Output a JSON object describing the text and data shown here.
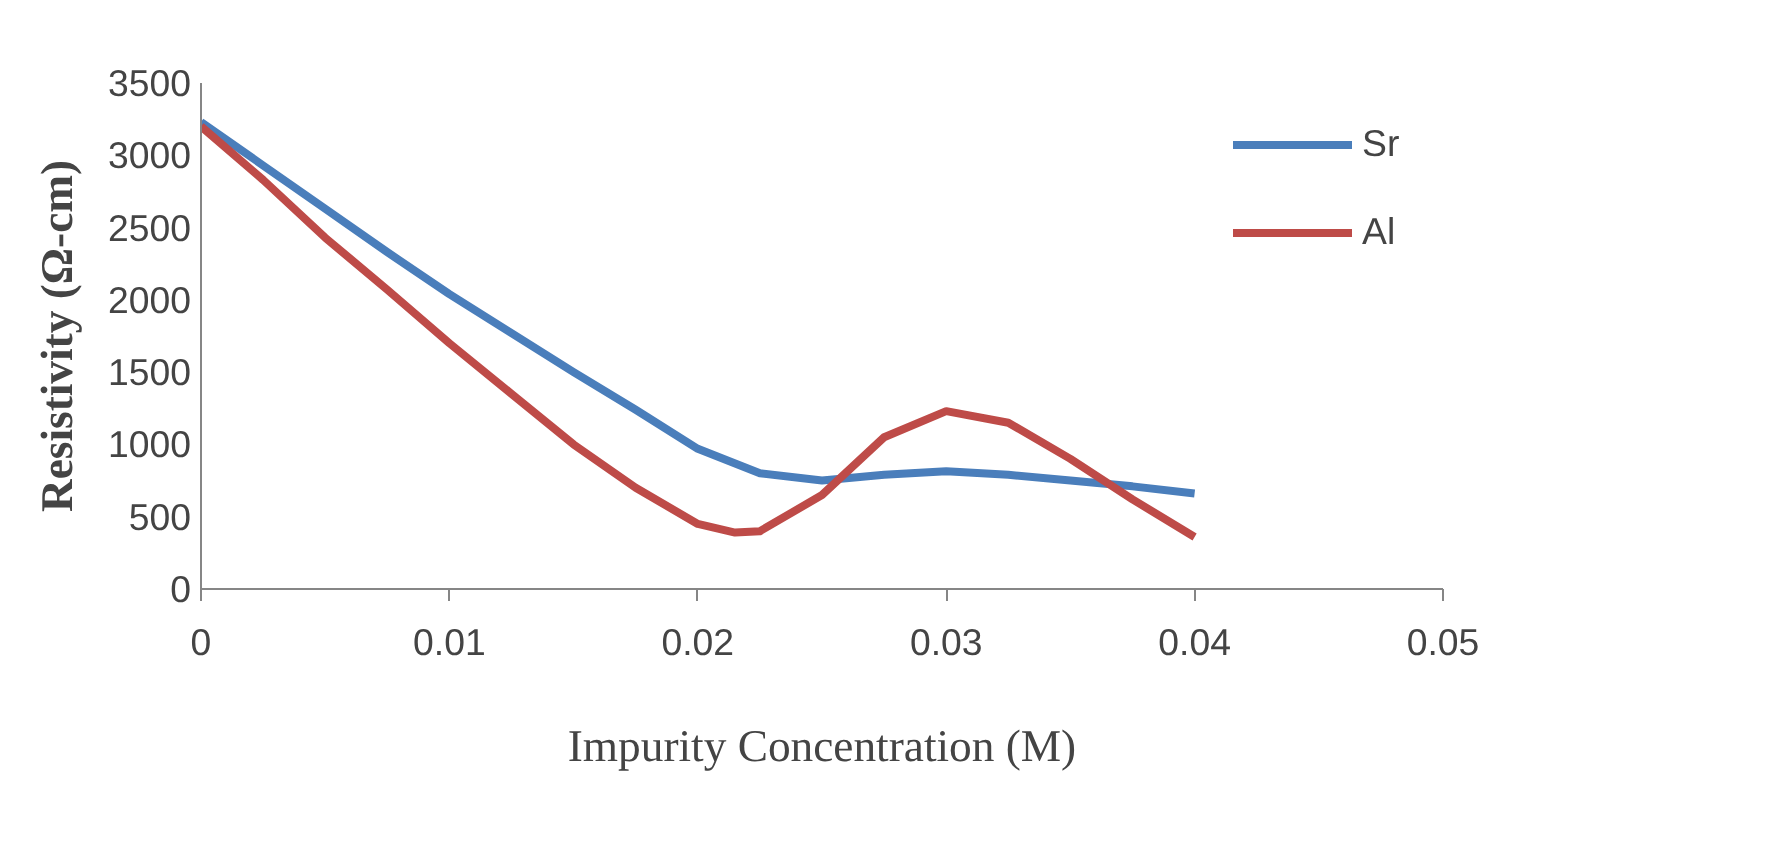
{
  "chart_data": {
    "type": "line",
    "xlabel": "Impurity Concentration (M)",
    "ylabel": "Resistivity (Ω-cm)",
    "xlim": [
      0,
      0.05
    ],
    "xticks": [
      0,
      0.01,
      0.02,
      0.03,
      0.04,
      0.05
    ],
    "ylim": [
      0,
      3500
    ],
    "yticks": [
      0,
      500,
      1000,
      1500,
      2000,
      2500,
      3000,
      3500
    ],
    "grid": false,
    "legend": "top right",
    "marker": "none",
    "line_style": "solid",
    "series": [
      {
        "name": "Sr",
        "color": "#4a7ebb",
        "x": [
          0,
          0.0025,
          0.005,
          0.0075,
          0.01,
          0.0125,
          0.015,
          0.0175,
          0.02,
          0.0225,
          0.025,
          0.0275,
          0.03,
          0.0325,
          0.035,
          0.0375,
          0.04
        ],
        "values": [
          3230,
          2930,
          2630,
          2330,
          2040,
          1770,
          1500,
          1240,
          970,
          800,
          750,
          790,
          815,
          790,
          750,
          710,
          660
        ]
      },
      {
        "name": "Al",
        "color": "#be4b48",
        "x": [
          0,
          0.0025,
          0.005,
          0.0075,
          0.01,
          0.0125,
          0.015,
          0.0175,
          0.02,
          0.0215,
          0.0225,
          0.025,
          0.0275,
          0.03,
          0.0325,
          0.035,
          0.0375,
          0.04
        ],
        "values": [
          3200,
          2830,
          2430,
          2070,
          1700,
          1350,
          1000,
          700,
          450,
          390,
          400,
          650,
          1050,
          1230,
          1150,
          900,
          620,
          360
        ]
      }
    ]
  }
}
